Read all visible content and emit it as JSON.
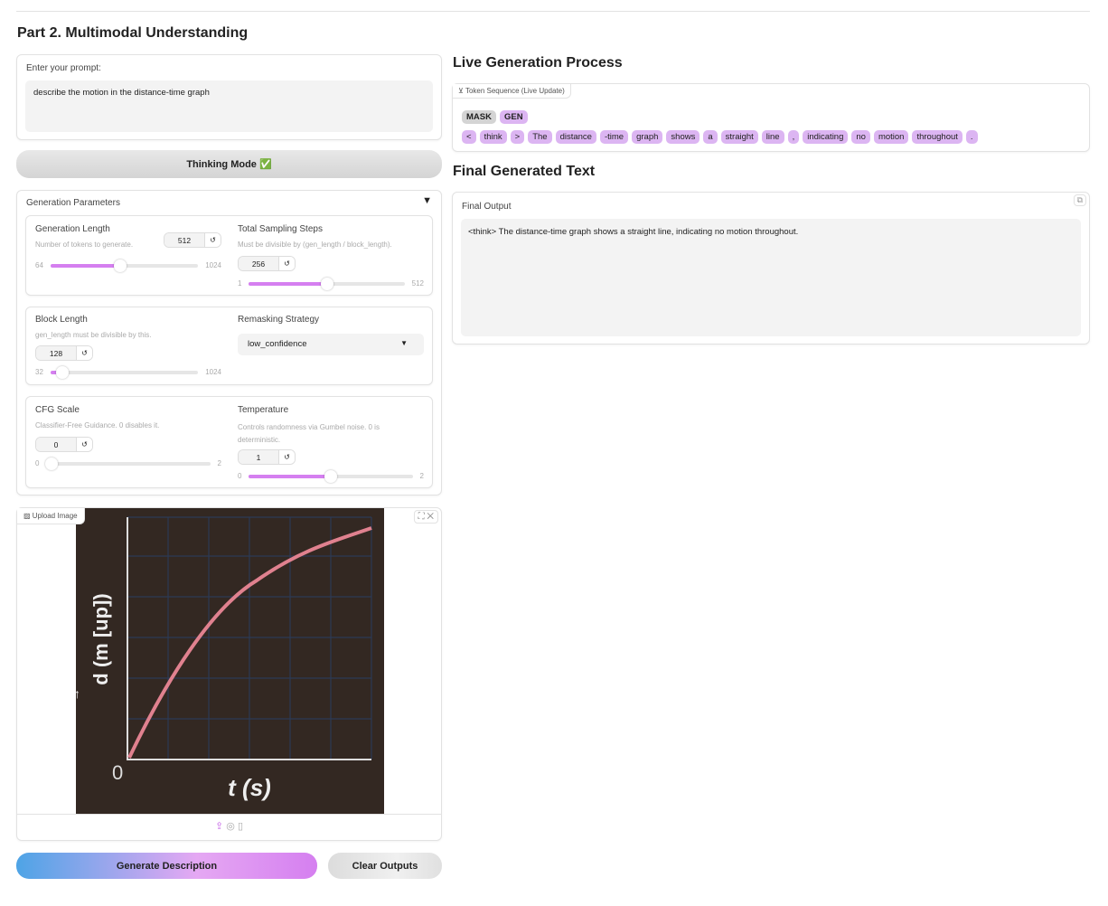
{
  "section_title": "Part 2. Multimodal Understanding",
  "prompt": {
    "label": "Enter your prompt:",
    "value": "describe the motion in the distance-time graph"
  },
  "thinking_mode": "Thinking Mode ✅",
  "params": {
    "title": "Generation Parameters",
    "toggle": "▼",
    "gen_length": {
      "label": "Generation Length",
      "info": "Number of tokens to generate.",
      "value": "512",
      "min": "64",
      "max": "1024",
      "fraction": 0.47
    },
    "steps": {
      "label": "Total Sampling Steps",
      "info": "Must be divisible by (gen_length / block_length).",
      "value": "256",
      "min": "1",
      "max": "512",
      "fraction": 0.5
    },
    "block": {
      "label": "Block Length",
      "info": "gen_length must be divisible by this.",
      "value": "128",
      "min": "32",
      "max": "1024",
      "fraction": 0.1
    },
    "remask": {
      "label": "Remasking Strategy",
      "value": "low_confidence"
    },
    "cfg": {
      "label": "CFG Scale",
      "info": "Classifier-Free Guidance. 0 disables it.",
      "value": "0",
      "min": "0",
      "max": "2",
      "fraction": 0
    },
    "temp": {
      "label": "Temperature",
      "info": "Controls randomness via Gumbel noise. 0 is deterministic.",
      "value": "1",
      "min": "0",
      "max": "2",
      "fraction": 0.5
    },
    "reset_icon": "↺"
  },
  "upload": {
    "label": "Upload Image",
    "image": {
      "ylabel": "d (m [up])",
      "xlabel": "t (s)",
      "origin": "0",
      "arrow": "↑"
    }
  },
  "buttons": {
    "generate": "Generate Description",
    "clear": "Clear Outputs"
  },
  "live": {
    "title": "Live Generation Process",
    "tag": "Token Sequence (Live Update)",
    "legend": [
      "MASK",
      "GEN"
    ],
    "tokens": [
      "<",
      "think",
      ">",
      "The",
      "distance",
      "-time",
      "graph",
      "shows",
      "a",
      "straight",
      "line",
      ",",
      "indicating",
      "no",
      "motion",
      "throughout",
      "."
    ]
  },
  "final": {
    "title": "Final Generated Text",
    "tag": "Final Output",
    "text": "<think> The distance-time graph shows a straight line, indicating no motion throughout."
  },
  "colors": {
    "accent": "#d57ff0",
    "token": "#dcb5f2",
    "mask": "#d4d4d4",
    "curve": "#e0818f",
    "image_bg": "#332822"
  }
}
